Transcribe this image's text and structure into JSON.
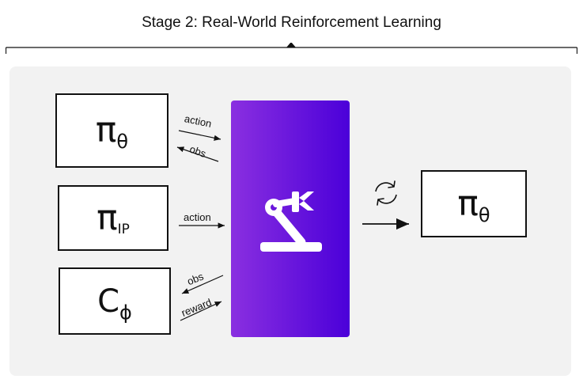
{
  "title": "Stage 2: Real-World Reinforcement Learning",
  "boxes": {
    "policy_theta": {
      "main": "π",
      "sub": "θ"
    },
    "policy_ip": {
      "main": "π",
      "sub": "IP"
    },
    "critic": {
      "main": "C",
      "sub": "ϕ"
    },
    "updated_policy": {
      "main": "π",
      "sub": "θ"
    }
  },
  "labels": {
    "action1": "action",
    "obs1": "obs",
    "action2": "action",
    "obs2": "obs",
    "reward": "reward"
  },
  "icons": {
    "robot": "robot-arm-icon",
    "update": "refresh-icon"
  },
  "colors": {
    "robot_gradient_start": "#8a2fe0",
    "robot_gradient_end": "#4b00d9",
    "panel": "#f2f2f2"
  }
}
